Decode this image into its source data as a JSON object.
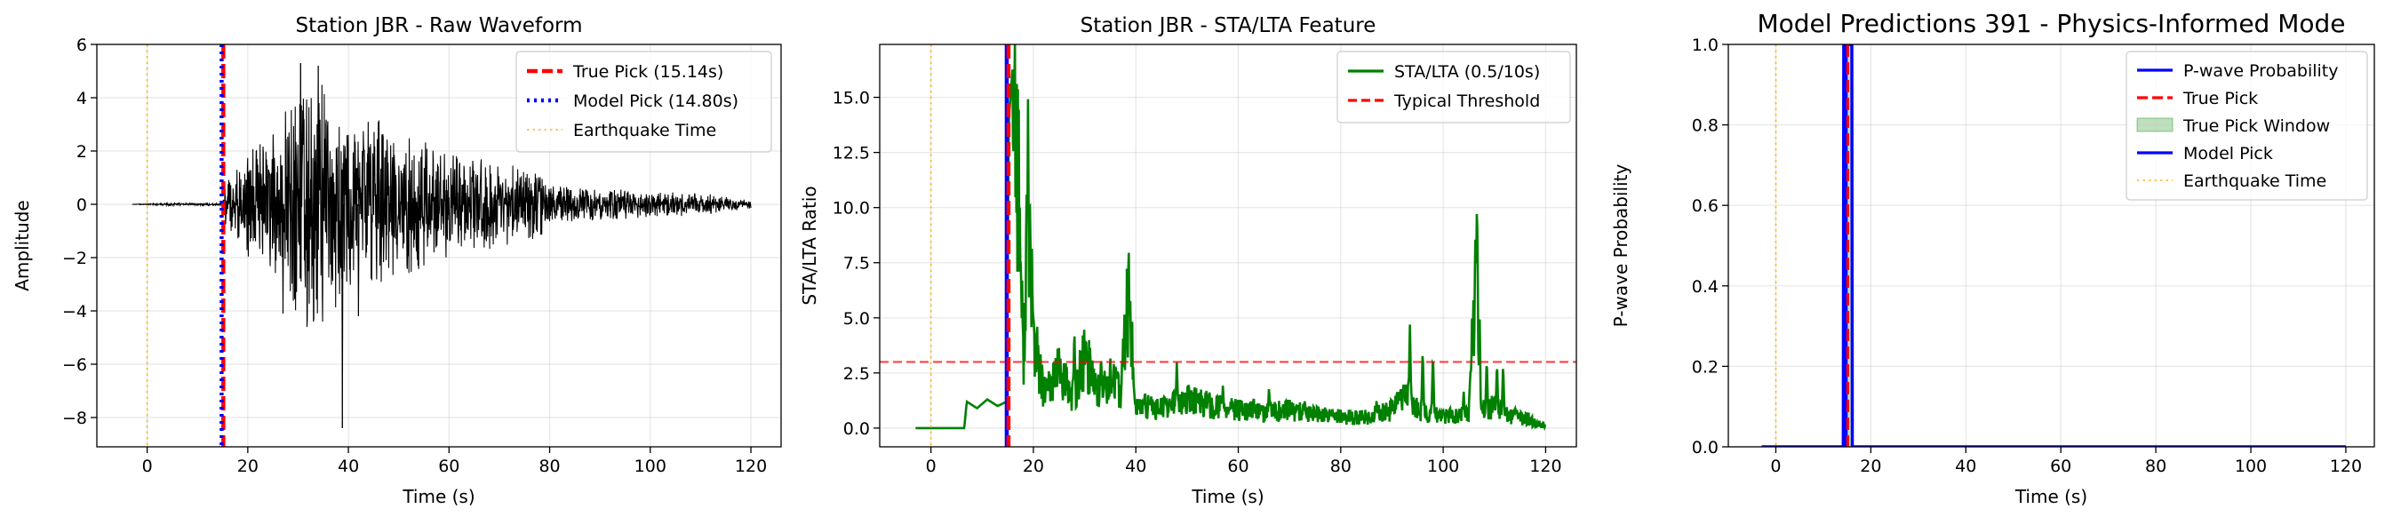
{
  "chart_data": [
    {
      "type": "line",
      "title": "Station JBR - Raw Waveform",
      "xlabel": "Time (s)",
      "ylabel": "Amplitude",
      "xlim": [
        -10,
        126
      ],
      "ylim": [
        -9.1,
        6
      ],
      "xticks": [
        0,
        20,
        40,
        60,
        80,
        100,
        120
      ],
      "yticks": [
        -8,
        -6,
        -4,
        -2,
        0,
        2,
        4,
        6
      ],
      "grid": true,
      "legend_position": "top-right",
      "series": [
        {
          "name": "",
          "kind": "waveform",
          "color": "#000000",
          "envelope": [
            [
              -3,
              0
            ],
            [
              -1,
              0.02
            ],
            [
              5,
              0.05
            ],
            [
              10,
              0.05
            ],
            [
              15,
              0.05
            ],
            [
              15.2,
              0.8
            ],
            [
              18,
              1.5
            ],
            [
              22,
              2.5
            ],
            [
              26,
              2.9
            ],
            [
              29,
              4.2
            ],
            [
              31,
              5.3
            ],
            [
              34,
              5.2
            ],
            [
              37,
              4.0
            ],
            [
              38.8,
              3.6
            ],
            [
              42,
              2.9
            ],
            [
              46,
              3.4
            ],
            [
              50,
              2.7
            ],
            [
              56,
              2.4
            ],
            [
              60,
              2.0
            ],
            [
              66,
              1.8
            ],
            [
              70,
              1.6
            ],
            [
              74,
              1.5
            ],
            [
              78,
              1.4
            ],
            [
              80,
              0.8
            ],
            [
              85,
              0.7
            ],
            [
              90,
              0.6
            ],
            [
              95,
              0.6
            ],
            [
              100,
              0.5
            ],
            [
              110,
              0.45
            ],
            [
              120,
              0.15
            ]
          ],
          "spikes": [
            [
              38.8,
              -8.4
            ],
            [
              30.5,
              5.3
            ],
            [
              34,
              5.2
            ],
            [
              42,
              -4.2
            ],
            [
              27,
              -4.1
            ]
          ]
        }
      ],
      "vlines": [
        {
          "name": "True Pick (15.14s)",
          "x": 15.14,
          "color": "#ff0000",
          "style": "dashed"
        },
        {
          "name": "Model Pick (14.80s)",
          "x": 14.8,
          "color": "#0000ff",
          "style": "dotted"
        },
        {
          "name": "Earthquake Time",
          "x": 0,
          "color": "#ffa500",
          "style": "dotted"
        }
      ]
    },
    {
      "type": "line",
      "title": "Station JBR - STA/LTA Feature",
      "xlabel": "Time (s)",
      "ylabel": "STA/LTA Ratio",
      "xlim": [
        -10,
        126
      ],
      "ylim": [
        -0.85,
        17.4
      ],
      "xticks": [
        0,
        20,
        40,
        60,
        80,
        100,
        120
      ],
      "yticks": [
        0.0,
        2.5,
        5.0,
        7.5,
        10.0,
        12.5,
        15.0
      ],
      "grid": true,
      "legend_position": "top-right",
      "series": [
        {
          "name": "STA/LTA (0.5/10s)",
          "color": "#008000",
          "baseline": [
            [
              -3,
              0
            ],
            [
              6.5,
              0
            ],
            [
              7,
              1.2
            ],
            [
              9,
              0.9
            ],
            [
              11,
              1.3
            ],
            [
              13,
              1.0
            ],
            [
              14.8,
              1.2
            ],
            [
              15.2,
              14.0
            ],
            [
              16,
              16.5
            ],
            [
              17,
              12.5
            ],
            [
              18,
              3.0
            ],
            [
              19,
              10.8
            ],
            [
              20,
              4.2
            ],
            [
              22,
              1.5
            ],
            [
              25,
              2.5
            ],
            [
              28,
              1.4
            ],
            [
              30,
              3.2
            ],
            [
              33,
              1.6
            ],
            [
              35,
              2.3
            ],
            [
              37,
              1.4
            ],
            [
              38.5,
              6.0
            ],
            [
              40,
              1.0
            ],
            [
              45,
              0.9
            ],
            [
              50,
              1.3
            ],
            [
              55,
              1.0
            ],
            [
              60,
              0.8
            ],
            [
              65,
              0.7
            ],
            [
              70,
              0.8
            ],
            [
              75,
              0.6
            ],
            [
              80,
              0.5
            ],
            [
              85,
              0.5
            ],
            [
              90,
              0.8
            ],
            [
              93,
              1.5
            ],
            [
              95,
              0.8
            ],
            [
              100,
              0.5
            ],
            [
              105,
              0.6
            ],
            [
              106.5,
              7.7
            ],
            [
              107.5,
              0.8
            ],
            [
              110,
              1.0
            ],
            [
              112,
              0.6
            ],
            [
              118,
              0.3
            ],
            [
              120,
              0.1
            ]
          ],
          "bursts": [
            [
              24,
              3.3
            ],
            [
              28,
              4.6
            ],
            [
              31.5,
              3.4
            ],
            [
              33.2,
              3.4
            ],
            [
              36.5,
              2.9
            ],
            [
              43,
              1.5
            ],
            [
              48,
              3.0
            ],
            [
              52,
              1.7
            ],
            [
              57,
              2.0
            ],
            [
              63,
              1.5
            ],
            [
              66,
              1.9
            ],
            [
              73,
              1.3
            ],
            [
              78,
              0.8
            ],
            [
              87,
              1.3
            ],
            [
              91,
              1.8
            ],
            [
              93.5,
              4.8
            ],
            [
              96,
              3.6
            ],
            [
              98,
              3.4
            ],
            [
              104,
              1.7
            ],
            [
              108.5,
              3.2
            ],
            [
              110.5,
              3.0
            ],
            [
              111.7,
              2.9
            ],
            [
              114,
              1.0
            ]
          ]
        },
        {
          "name": "Typical Threshold",
          "color": "#ff0000",
          "style": "dashed",
          "y": 3.0
        }
      ],
      "vlines": [
        {
          "name": "",
          "x": 14.8,
          "color": "#0000ff",
          "style": "solid"
        },
        {
          "name": "",
          "x": 15.14,
          "color": "#ff0000",
          "style": "dashed"
        },
        {
          "name": "",
          "x": 0,
          "color": "#ffa500",
          "style": "dotted"
        }
      ]
    },
    {
      "type": "line",
      "title": "Model Predictions 391 - Physics-Informed Mode",
      "xlabel": "Time (s)",
      "ylabel": "P-wave Probability",
      "xlim": [
        -10,
        126
      ],
      "ylim": [
        0,
        1
      ],
      "xticks": [
        0,
        20,
        40,
        60,
        80,
        100,
        120
      ],
      "yticks": [
        0.0,
        0.2,
        0.4,
        0.6,
        0.8,
        1.0
      ],
      "grid": true,
      "legend_position": "top-right",
      "series": [
        {
          "name": "P-wave Probability",
          "color": "#0000ff",
          "points": [
            [
              -3,
              0
            ],
            [
              14.2,
              0
            ],
            [
              14.3,
              1
            ],
            [
              16.0,
              1
            ],
            [
              16.1,
              0
            ],
            [
              120,
              0
            ]
          ]
        },
        {
          "name": "True Pick",
          "color": "#ff0000",
          "style": "dashed",
          "x": 15.14
        },
        {
          "name": "True Pick Window",
          "color": "#008000",
          "kind": "span",
          "x0": 14.14,
          "x1": 16.14
        },
        {
          "name": "Model Pick",
          "color": "#0000ff",
          "style": "solid",
          "x": 14.8
        },
        {
          "name": "Earthquake Time",
          "color": "#ffa500",
          "style": "dotted",
          "x": 0
        }
      ]
    }
  ]
}
